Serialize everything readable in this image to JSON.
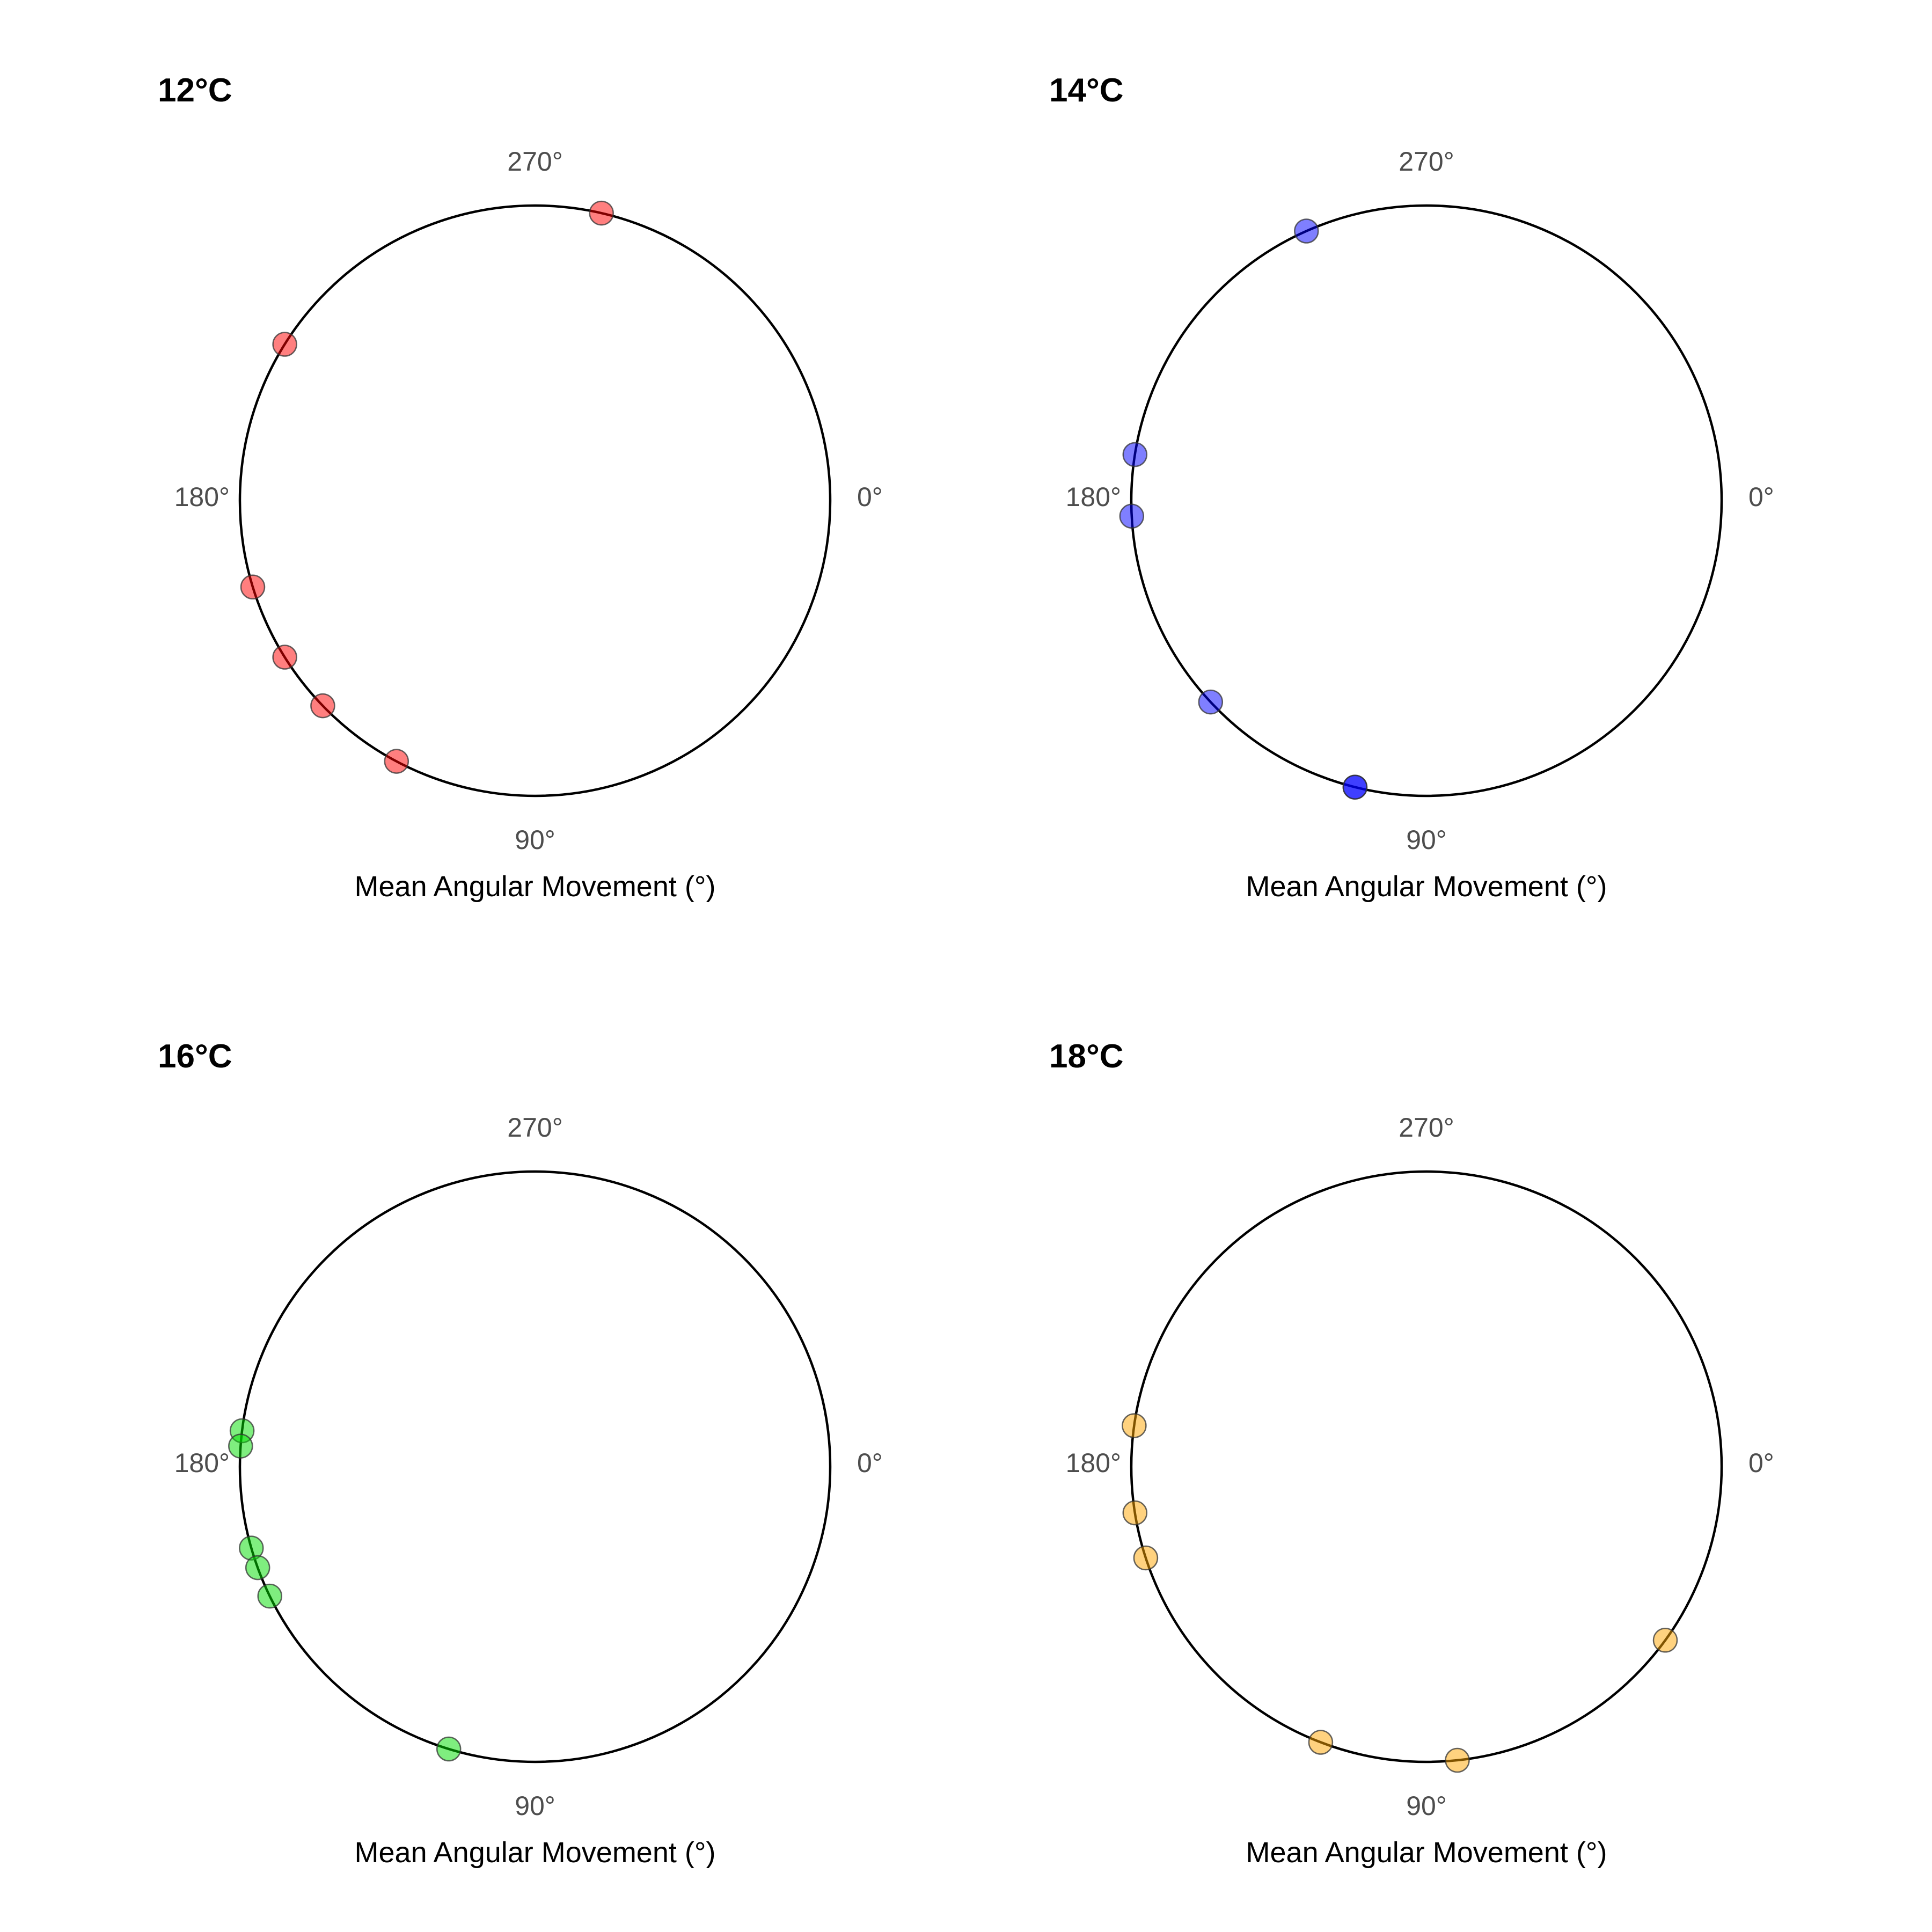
{
  "chart_data": [
    {
      "type": "scatter",
      "coord": "circular",
      "title": "12°C",
      "xlabel": "Mean Angular Movement (°)",
      "direction_labels": {
        "right": "0°",
        "bottom": "90°",
        "left": "180°",
        "top": "270°"
      },
      "color": "#ff0000",
      "alpha": 0.5,
      "values_deg": [
        283,
        212,
        163,
        148,
        136,
        118
      ]
    },
    {
      "type": "scatter",
      "coord": "circular",
      "title": "14°C",
      "xlabel": "Mean Angular Movement (°)",
      "direction_labels": {
        "right": "0°",
        "bottom": "90°",
        "left": "180°",
        "top": "270°"
      },
      "color": "#0000ff",
      "alpha": 0.5,
      "values_deg": [
        246,
        189,
        177,
        137,
        104,
        104
      ]
    },
    {
      "type": "scatter",
      "coord": "circular",
      "title": "16°C",
      "xlabel": "Mean Angular Movement (°)",
      "direction_labels": {
        "right": "0°",
        "bottom": "90°",
        "left": "180°",
        "top": "270°"
      },
      "color": "#00dd00",
      "alpha": 0.5,
      "values_deg": [
        187,
        184,
        164,
        160,
        154,
        107
      ]
    },
    {
      "type": "scatter",
      "coord": "circular",
      "title": "18°C",
      "xlabel": "Mean Angular Movement (°)",
      "direction_labels": {
        "right": "0°",
        "bottom": "90°",
        "left": "180°",
        "top": "270°"
      },
      "color": "#ffa500",
      "alpha": 0.5,
      "values_deg": [
        188,
        171,
        162,
        36,
        111,
        84
      ]
    }
  ]
}
